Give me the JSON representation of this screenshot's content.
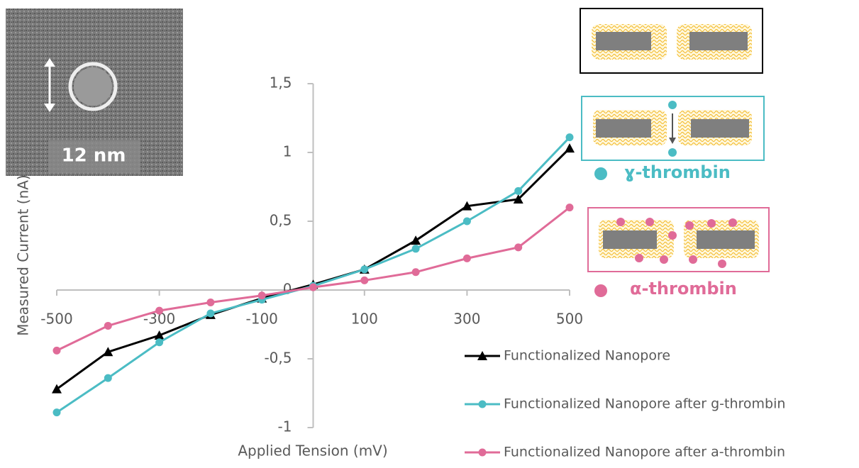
{
  "chart_data": {
    "type": "line",
    "x_label": "Applied Tension (mV)",
    "y_label": "Measured Current (nA)",
    "x": [
      -500,
      -400,
      -300,
      -200,
      -100,
      0,
      100,
      200,
      300,
      400,
      500
    ],
    "series": [
      {
        "name": "Functionalized Nanopore",
        "color": "#000000",
        "marker": "triangle",
        "values": [
          -0.72,
          -0.45,
          -0.33,
          -0.18,
          -0.06,
          0.04,
          0.15,
          0.36,
          0.61,
          0.66,
          1.03
        ]
      },
      {
        "name": "Functionalized Nanopore after g-thrombin",
        "color": "#4bbcc4",
        "marker": "circle",
        "values": [
          -0.89,
          -0.64,
          -0.38,
          -0.17,
          -0.07,
          0.03,
          0.15,
          0.3,
          0.5,
          0.72,
          1.11
        ]
      },
      {
        "name": "Functionalized Nanopore after a-thrombin",
        "color": "#e06b98",
        "marker": "circle",
        "values": [
          -0.44,
          -0.26,
          -0.15,
          -0.09,
          -0.04,
          0.02,
          0.07,
          0.13,
          0.23,
          0.31,
          0.6
        ]
      }
    ],
    "xlim": [
      -500,
      500
    ],
    "xticks": [
      -500,
      -300,
      -100,
      100,
      300,
      500
    ],
    "ylim": [
      -1,
      1.5
    ],
    "yticks": [
      -1,
      {
        "value": -0.5,
        "label": "-0,5"
      },
      0,
      {
        "value": 0.5,
        "label": "0,5"
      },
      1,
      {
        "value": 1.5,
        "label": "1,5"
      }
    ],
    "annotations": [
      {
        "text": "12 nm",
        "color": "#ffffff"
      },
      {
        "text": "ɣ-thrombin",
        "color": "#4bbcc4"
      },
      {
        "text": "α-thrombin",
        "color": "#e06b98"
      }
    ]
  }
}
